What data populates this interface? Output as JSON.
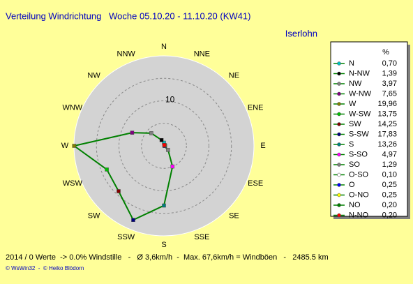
{
  "chart_data": {
    "type": "radar",
    "title": "Verteilung Windrichtung   Woche 05.10.20 - 11.10.20 (KW41)",
    "subtitle": "Iserlohn",
    "directions": [
      "N",
      "NNE",
      "NE",
      "ENE",
      "E",
      "ESE",
      "SE",
      "SSE",
      "S",
      "SSW",
      "SW",
      "WSW",
      "W",
      "WNW",
      "NW",
      "NNW"
    ],
    "legend_header": "%",
    "categories": [
      "N",
      "N-NW",
      "NW",
      "W-NW",
      "W",
      "W-SW",
      "SW",
      "S-SW",
      "S",
      "S-SO",
      "SO",
      "O-SO",
      "O",
      "O-NO",
      "NO",
      "N-NO"
    ],
    "values": [
      0.7,
      1.39,
      3.97,
      7.65,
      19.96,
      13.75,
      14.25,
      17.83,
      13.26,
      4.97,
      1.29,
      0.1,
      0.25,
      0.25,
      0.2,
      0.2
    ],
    "value_labels": [
      "0,70",
      "1,39",
      "3,97",
      "7,65",
      "19,96",
      "13,75",
      "14,25",
      "17,83",
      "13,26",
      "4,97",
      "1,29",
      "0,10",
      "0,25",
      "0,25",
      "0,20",
      "0,20"
    ],
    "colors": [
      "#00c0c0",
      "#000000",
      "#808080",
      "#800080",
      "#808000",
      "#00c000",
      "#800000",
      "#000080",
      "#008080",
      "#ff00ff",
      "#808080",
      "#ffffff",
      "#0000ff",
      "#ffff00",
      "#008000",
      "#ff0000"
    ],
    "line_color": "#008000",
    "rlim": [
      0,
      20
    ],
    "rticks": [
      10
    ],
    "rgrid": [
      5,
      10,
      15
    ],
    "footer": "2014 / 0 Werte  -> 0.0% Windstille   -   Ø 3,6km/h  -  Max. 67,6km/h = Windböen   -   2485.5 km",
    "credits": "© WsWin32  -  © Heiko Blödorn"
  }
}
